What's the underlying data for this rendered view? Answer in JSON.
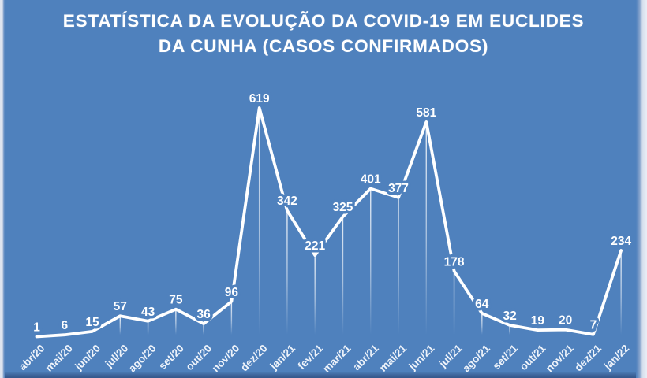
{
  "title": {
    "line1": "ESTATÍSTICA DA EVOLUÇÃO DA COVID-19 EM EUCLIDES",
    "line2": "DA CUNHA (CASOS CONFIRMADOS)"
  },
  "colors": {
    "background": "#4f81bd",
    "line": "#ffffff",
    "data_label": "#ffffff",
    "axis_label": "#eef3fa",
    "title": "#ffffff"
  },
  "chart_data": {
    "type": "line",
    "title": "ESTATÍSTICA DA EVOLUÇÃO DA COVID-19 EM EUCLIDES DA CUNHA (CASOS CONFIRMADOS)",
    "categories": [
      "abr/20",
      "mai/20",
      "jun/20",
      "jul/20",
      "ago/20",
      "set/20",
      "out/20",
      "nov/20",
      "dez/20",
      "jan/21",
      "fev/21",
      "mar/21",
      "abr/21",
      "mai/21",
      "jun/21",
      "jul/21",
      "ago/21",
      "set/21",
      "out/21",
      "nov/21",
      "dez/21",
      "jan/22"
    ],
    "values": [
      1,
      6,
      15,
      57,
      43,
      75,
      36,
      96,
      619,
      342,
      221,
      325,
      401,
      377,
      581,
      178,
      64,
      32,
      19,
      20,
      7,
      234
    ],
    "xlabel": "",
    "ylabel": "",
    "ylim": [
      0,
      650
    ],
    "grid": false,
    "legend": "none",
    "markers": "none",
    "data_labels_position": "above",
    "x_tick_rotation": 45
  }
}
